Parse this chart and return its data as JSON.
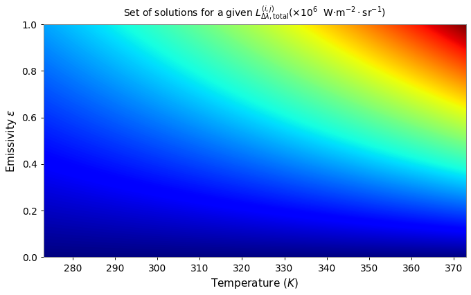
{
  "T_min": 273.0,
  "T_max": 373.0,
  "eps_min": 0.0,
  "eps_max": 1.0,
  "T_ticks": [
    280,
    290,
    300,
    310,
    320,
    330,
    340,
    350,
    360,
    370
  ],
  "eps_ticks": [
    0,
    0.2,
    0.4,
    0.6,
    0.8,
    1.0
  ],
  "contour_levels": [
    6,
    7,
    8,
    9,
    10,
    11,
    12,
    13,
    14,
    15,
    16,
    17,
    18,
    19,
    20,
    21,
    22,
    23,
    24,
    25,
    26,
    27
  ],
  "colormap": "jet",
  "xlabel": "Temperature $(K)$",
  "ylabel": "Emissivity $\\epsilon$",
  "title": "Set of solutions for a given $L^{(i,j)}_{\\Delta\\lambda,\\mathrm{total}}$($\\times 10^6$  W$\\cdot$m$^{-2}\\cdot$sr$^{-1}$)",
  "sigma": 5.670374419e-08,
  "scale_factor": 1000000.0,
  "background_color": "#ffffff",
  "contour_color": "white",
  "contour_linewidth": 0.8,
  "label_fontsize": 7.5,
  "figsize": [
    6.8,
    4.26
  ],
  "dpi": 100
}
